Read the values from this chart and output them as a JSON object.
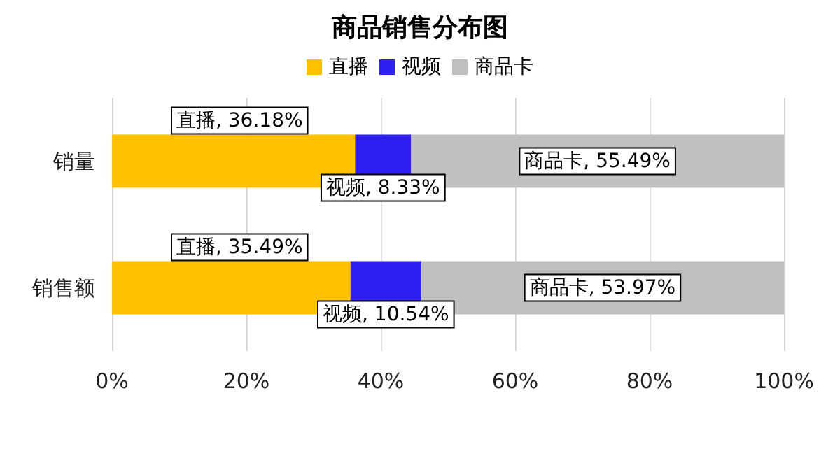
{
  "chart_data": {
    "type": "bar",
    "title": "商品销售分布图",
    "orientation": "horizontal",
    "stacked": true,
    "categories": [
      "销量",
      "销售额"
    ],
    "series": [
      {
        "name": "直播",
        "color": "#ffc000",
        "values": [
          36.18,
          35.49
        ],
        "value_labels": [
          "直播, 36.18%",
          "直播, 35.49%"
        ]
      },
      {
        "name": "视频",
        "color": "#2f1ff0",
        "values": [
          8.33,
          10.54
        ],
        "value_labels": [
          "视频, 8.33%",
          "视频, 10.54%"
        ]
      },
      {
        "name": "商品卡",
        "color": "#bfbfbf",
        "values": [
          55.49,
          53.97
        ],
        "value_labels": [
          "商品卡, 55.49%",
          "商品卡, 53.97%"
        ]
      }
    ],
    "xlim": [
      0,
      100
    ],
    "xticks": [
      {
        "value": 0,
        "label": "0%"
      },
      {
        "value": 20,
        "label": "20%"
      },
      {
        "value": 40,
        "label": "40%"
      },
      {
        "value": 60,
        "label": "60%"
      },
      {
        "value": 80,
        "label": "80%"
      },
      {
        "value": 100,
        "label": "100%"
      }
    ],
    "grid": "x",
    "legend": "top"
  }
}
